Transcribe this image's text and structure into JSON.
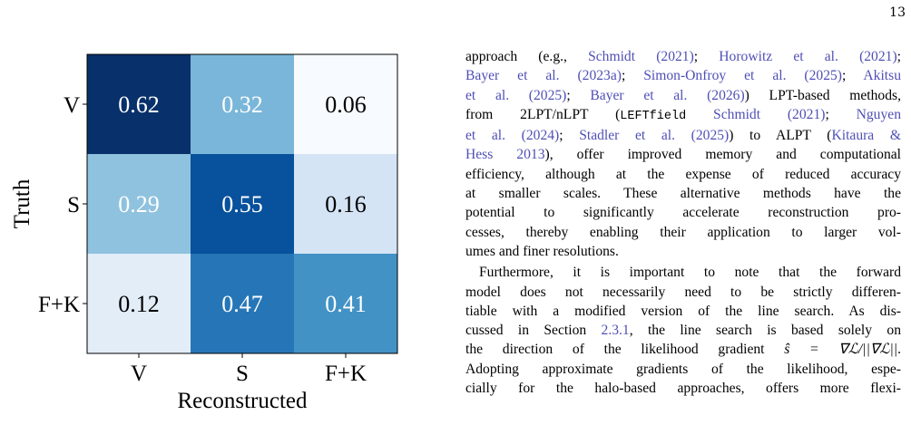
{
  "page": {
    "number": "13"
  },
  "chart_data": {
    "type": "heatmap",
    "xlabel": "Reconstructed",
    "ylabel": "Truth",
    "x_categories": [
      "V",
      "S",
      "F+K"
    ],
    "y_categories": [
      "V",
      "S",
      "F+K"
    ],
    "values": [
      [
        0.62,
        0.32,
        0.06
      ],
      [
        0.29,
        0.55,
        0.16
      ],
      [
        0.12,
        0.47,
        0.41
      ]
    ],
    "value_labels": [
      [
        "0.62",
        "0.32",
        "0.06"
      ],
      [
        "0.29",
        "0.55",
        "0.16"
      ],
      [
        "0.12",
        "0.47",
        "0.41"
      ]
    ],
    "colormap": "Blues",
    "vmin": 0.06,
    "vmax": 0.62,
    "colors": {
      "low": "#f7fbff",
      "high": "#08306b",
      "text_dark": "#000000",
      "text_light": "#ffffff"
    }
  },
  "text": {
    "p1": {
      "l1_a": "approach (e.g., ",
      "l1_c1": "Schmidt (2021)",
      "l1_b": "; ",
      "l1_c2": "Horowitz et al. (2021)",
      "l1_e": ";",
      "l2_c1": "Bayer et al. (2023a)",
      "l2_a": "; ",
      "l2_c2": "Simon-Onfroy et al. (2025)",
      "l2_b": "; ",
      "l2_c3": "Akitsu",
      "l3_c1": "et al. (2025)",
      "l3_a": "; ",
      "l3_c2": "Bayer et al. (2026)",
      "l3_b": ") LPT-based methods,",
      "l4_a": "from 2LPT/nLPT (",
      "l4_mono": "LEFTfield",
      "l4_sp": " ",
      "l4_c1": "Schmidt (2021)",
      "l4_b": "; ",
      "l4_c2": "Nguyen",
      "l5_c1": "et al. (2024)",
      "l5_a": "; ",
      "l5_c2": "Stadler et al. (2025)",
      "l5_b": ") to ALPT (",
      "l5_c3": "Kitaura &",
      "l6_c1": "Hess 2013",
      "l6_a": "), offer improved memory and computational",
      "l7": "efficiency, although at the expense of reduced accuracy",
      "l8": "at smaller scales.  These alternative methods have the",
      "l9": "potential to significantly accelerate reconstruction pro-",
      "l10": "cesses, thereby enabling their application to larger vol-",
      "l11": "umes and finer resolutions."
    },
    "p2": {
      "l1": "Furthermore, it is important to note that the forward",
      "l2": "model does not necessarily need to be strictly differen-",
      "l3": "tiable with a modified version of the line search. As dis-",
      "l4_a": "cussed in Section ",
      "l4_c1": "2.3.1",
      "l4_b": ", the line search is based solely on",
      "l5_a": "the direction of the likelihood gradient ",
      "l5_math": "ŝ = ∇ℒ/||∇ℒ||",
      "l5_b": ".",
      "l6": "Adopting approximate gradients of the likelihood, espe-",
      "l7": "cially for the halo-based approaches, offers more flexi-"
    }
  }
}
